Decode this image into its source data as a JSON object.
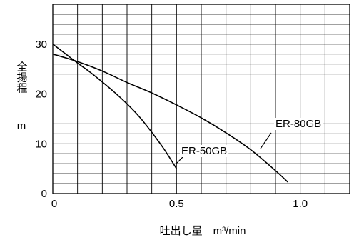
{
  "chart_data": {
    "type": "line",
    "title": "",
    "xlabel": "吐出し量　m³/min",
    "ylabel": "全揚程",
    "ylabel_unit": "m",
    "xlim": [
      0,
      1.2
    ],
    "ylim": [
      0,
      38
    ],
    "x_ticks": [
      "0",
      "0.5",
      "1.0"
    ],
    "x_tick_values": [
      0,
      0.5,
      1.0
    ],
    "y_ticks": [
      "0",
      "10",
      "20",
      "30"
    ],
    "y_tick_values": [
      0,
      10,
      20,
      30
    ],
    "grid": true,
    "x_grid_step": 0.1,
    "y_grid_step": 2,
    "series": [
      {
        "name": "ER-50GB",
        "x": [
          0,
          0.05,
          0.1,
          0.15,
          0.2,
          0.25,
          0.3,
          0.35,
          0.4,
          0.45,
          0.5
        ],
        "y": [
          30,
          28.1,
          26.2,
          24.4,
          22.4,
          20.3,
          18,
          15.4,
          12.3,
          8.9,
          5
        ]
      },
      {
        "name": "ER-80GB",
        "x": [
          0,
          0.1,
          0.2,
          0.3,
          0.4,
          0.5,
          0.6,
          0.7,
          0.8,
          0.9,
          0.95
        ],
        "y": [
          28,
          26.5,
          24.6,
          22.3,
          20.2,
          17.8,
          15.2,
          12.2,
          8.8,
          4.6,
          2.3
        ]
      }
    ]
  }
}
